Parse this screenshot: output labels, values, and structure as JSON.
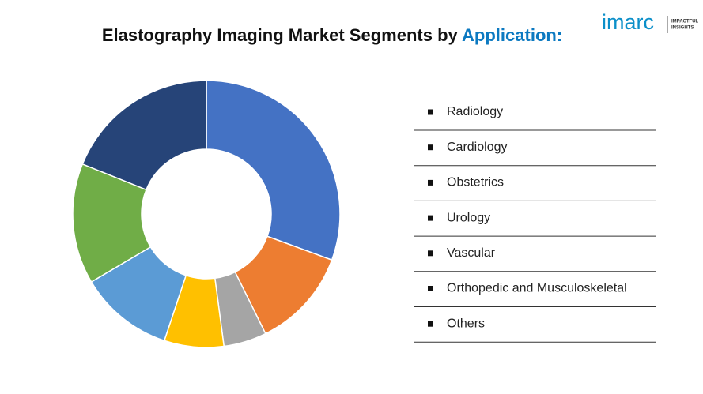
{
  "chart_data": {
    "type": "pie",
    "title": "Elastography Imaging Market Segments by",
    "title_highlight": "Application:",
    "categories": [
      "Radiology",
      "Cardiology",
      "Obstetrics",
      "Urology",
      "Vascular",
      "Orthopedic and Musculoskeletal",
      "Others"
    ],
    "values": [
      30.6,
      12.1,
      5.2,
      7.2,
      11.4,
      14.6,
      18.9
    ],
    "colors": [
      "#4472c4",
      "#ed7d31",
      "#a5a5a5",
      "#ffc000",
      "#5b9bd5",
      "#70ad47",
      "#264478"
    ],
    "donut": true,
    "legend": "right"
  },
  "logo": {
    "name": "imarc",
    "tagline": [
      "IMPACTFUL",
      "INSIGHTS"
    ]
  }
}
